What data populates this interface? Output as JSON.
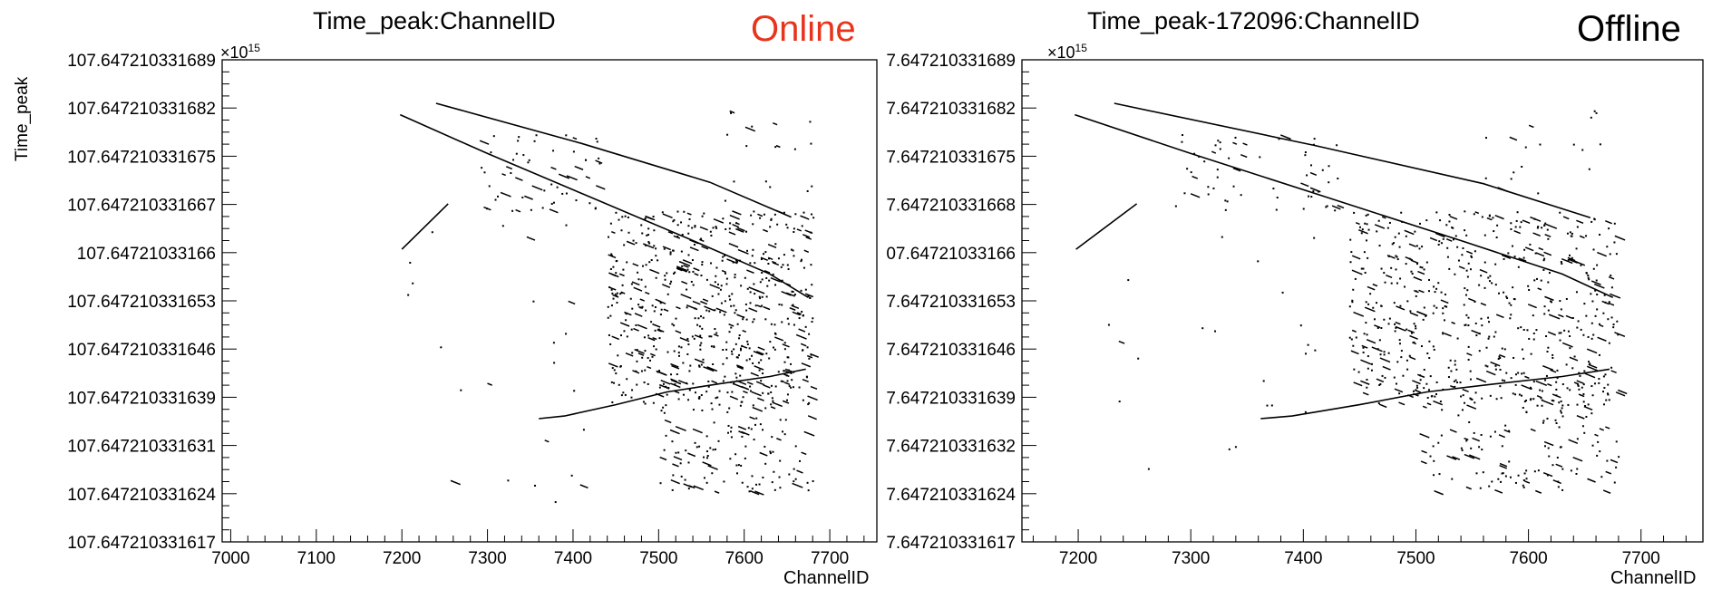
{
  "chart_data": [
    {
      "type": "scatter",
      "title": "Time_peak:ChannelID",
      "tag": "Online",
      "tag_color": "#e8341c",
      "exponent_label": "×10",
      "exponent_power": "15",
      "xlabel": "ChannelID",
      "ylabel": "Time_peak",
      "xlim": [
        6990,
        7755
      ],
      "ylim": [
        107.647210331617,
        107.647210331689
      ],
      "xticks": [
        7000,
        7100,
        7200,
        7300,
        7400,
        7500,
        7600,
        7700
      ],
      "ytick_labels": [
        "107.647210331689",
        "107.647210331682",
        "107.647210331675",
        "107.647210331667",
        "107.64721033166",
        "107.647210331653",
        "107.647210331646",
        "107.647210331639",
        "107.647210331631",
        "107.647210331624",
        "107.647210331617"
      ],
      "tracks": [
        {
          "x": [
            7240,
            7410,
            7560,
            7655
          ],
          "y": [
            107.6472103316825,
            107.6472103316765,
            107.6472103316707,
            107.6472103316655
          ]
        },
        {
          "x": [
            7198,
            7300,
            7420,
            7540,
            7630,
            7675
          ],
          "y": [
            107.6472103316808,
            107.647210331675,
            107.6472103316685,
            107.647210331662,
            107.647210331657,
            107.6472103316535
          ]
        },
        {
          "x": [
            7200,
            7254
          ],
          "y": [
            107.6472103316607,
            107.6472103316675
          ]
        },
        {
          "x": [
            7360,
            7390,
            7450,
            7510,
            7570,
            7630,
            7672
          ],
          "y": [
            107.6472103316354,
            107.6472103316358,
            107.6472103316375,
            107.6472103316394,
            107.6472103316406,
            107.6472103316417,
            107.6472103316428
          ]
        }
      ],
      "clusters": [
        {
          "x": [
            7440,
            7680
          ],
          "y": [
            107.6472103316375,
            107.6472103316665
          ],
          "n": 620
        },
        {
          "x": [
            7500,
            7680
          ],
          "y": [
            107.6472103316245,
            107.6472103316415
          ],
          "n": 160
        },
        {
          "x": [
            7290,
            7440
          ],
          "y": [
            107.6472103316665,
            107.647210331678
          ],
          "n": 60
        },
        {
          "x": [
            7560,
            7680
          ],
          "y": [
            107.647210331668,
            107.6472103316815
          ],
          "n": 18
        },
        {
          "x": [
            7200,
            7440
          ],
          "y": [
            107.647210331623,
            107.6472103316675
          ],
          "n": 24
        }
      ]
    },
    {
      "type": "scatter",
      "title": "Time_peak-172096:ChannelID",
      "tag": "Offline",
      "tag_color": "#000000",
      "exponent_label": "×10",
      "exponent_power": "15",
      "xlabel": "ChannelID",
      "ylabel": "",
      "xlim": [
        7150,
        7755
      ],
      "ylim": [
        107.647210331617,
        107.647210331689
      ],
      "xticks": [
        7200,
        7300,
        7400,
        7500,
        7600,
        7700
      ],
      "ytick_labels": [
        "7.647210331689",
        "7.647210331682",
        "7.647210331675",
        "7.647210331668",
        "07.64721033166",
        "7.647210331653",
        "7.647210331646",
        "7.647210331639",
        "7.647210331632",
        "7.647210331624",
        "7.647210331617"
      ],
      "tracks": [
        {
          "x": [
            7232,
            7410,
            7560,
            7655
          ],
          "y": [
            107.6472103316825,
            107.6472103316762,
            107.6472103316705,
            107.6472103316654
          ]
        },
        {
          "x": [
            7197,
            7300,
            7420,
            7540,
            7630,
            7675
          ],
          "y": [
            107.6472103316808,
            107.647210331675,
            107.6472103316685,
            107.647210331662,
            107.647210331657,
            107.6472103316535
          ]
        },
        {
          "x": [
            7198,
            7252
          ],
          "y": [
            107.6472103316607,
            107.6472103316675
          ]
        },
        {
          "x": [
            7362,
            7390,
            7450,
            7510,
            7570,
            7630,
            7672
          ],
          "y": [
            107.6472103316354,
            107.6472103316358,
            107.6472103316375,
            107.6472103316394,
            107.6472103316406,
            107.6472103316417,
            107.6472103316428
          ]
        }
      ],
      "clusters": [
        {
          "x": [
            7440,
            7680
          ],
          "y": [
            107.6472103316375,
            107.6472103316665
          ],
          "n": 620
        },
        {
          "x": [
            7500,
            7680
          ],
          "y": [
            107.6472103316245,
            107.6472103316415
          ],
          "n": 160
        },
        {
          "x": [
            7290,
            7440
          ],
          "y": [
            107.6472103316665,
            107.647210331678
          ],
          "n": 60
        },
        {
          "x": [
            7560,
            7680
          ],
          "y": [
            107.647210331668,
            107.6472103316815
          ],
          "n": 18
        },
        {
          "x": [
            7200,
            7440
          ],
          "y": [
            107.647210331623,
            107.6472103316675
          ],
          "n": 24
        }
      ]
    }
  ]
}
